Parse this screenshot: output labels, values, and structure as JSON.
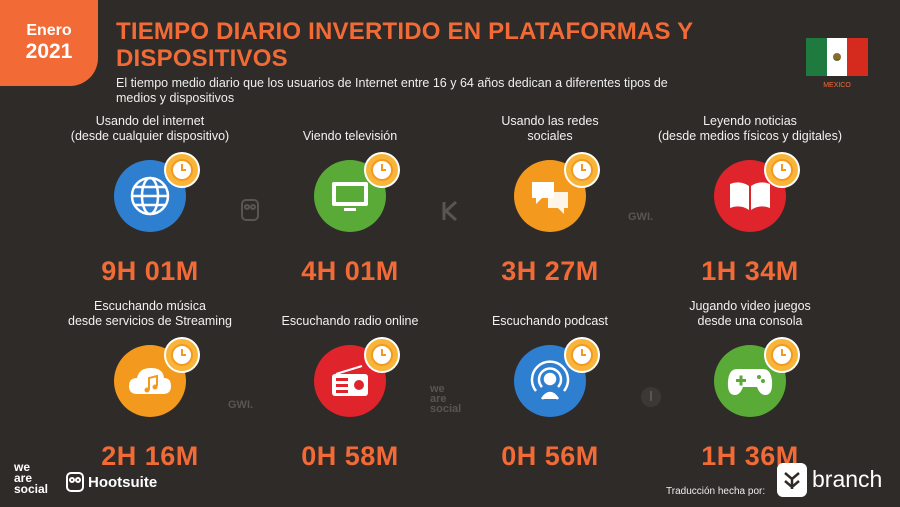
{
  "badge": {
    "month": "Enero",
    "year": "2021"
  },
  "title": "TIEMPO DIARIO INVERTIDO EN PLATAFORMAS Y DISPOSITIVOS",
  "subtitle": "El tiempo medio diario que los usuarios de Internet entre 16 y 64 años dedican a diferentes tipos de medios y dispositivos",
  "country": {
    "label": "MEXICO",
    "colors": [
      "#1e7a3e",
      "#ffffff",
      "#d52b1e"
    ]
  },
  "cards": [
    {
      "label": "Usando del internet\n(desde cualquier dispositivo)",
      "value": "9H 01M",
      "icon": "globe-icon",
      "color": "#2f7fd1"
    },
    {
      "label": "Viendo televisión",
      "value": "4H 01M",
      "icon": "tv-icon",
      "color": "#5aaa37"
    },
    {
      "label": "Usando las redes\nsociales",
      "value": "3H 27M",
      "icon": "chat-bubbles-icon",
      "color": "#f39a1e"
    },
    {
      "label": "Leyendo noticias\n(desde medios físicos y digitales)",
      "value": "1H 34M",
      "icon": "book-icon",
      "color": "#e0242c"
    },
    {
      "label": "Escuchando música\ndesde servicios de Streaming",
      "value": "2H 16M",
      "icon": "cloud-music-icon",
      "color": "#f39a1e"
    },
    {
      "label": "Escuchando radio online",
      "value": "0H 58M",
      "icon": "radio-icon",
      "color": "#e0242c"
    },
    {
      "label": "Escuchando podcast",
      "value": "0H 56M",
      "icon": "podcast-icon",
      "color": "#2f7fd1"
    },
    {
      "label": "Jugando video juegos\ndesde una consola",
      "value": "1H 36M",
      "icon": "gamepad-icon",
      "color": "#5aaa37"
    }
  ],
  "watermarks": {
    "gwi": "GWI.",
    "wearesocial": "we\nare\nsocial"
  },
  "footer": {
    "wearesocial": "we\nare\nsocial",
    "hootsuite": "Hootsuite",
    "translated": "Traducción hecha por:",
    "branch": "branch"
  }
}
